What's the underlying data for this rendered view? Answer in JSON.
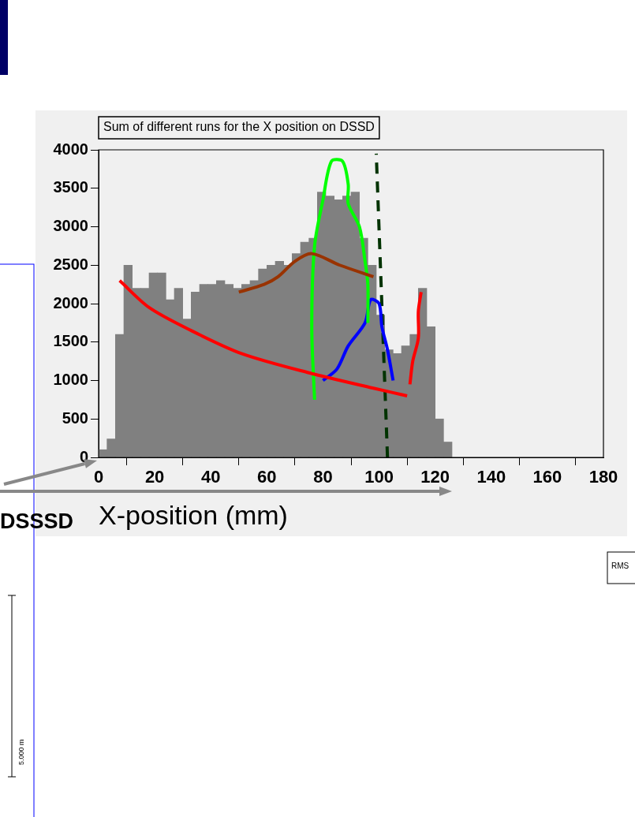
{
  "chart_data": {
    "type": "histogram",
    "title": "Sum of different runs for the X position on DSSD",
    "xlabel": "X-position (mm)",
    "bins": [
      0,
      3,
      6,
      9,
      12,
      15,
      18,
      21,
      24,
      27,
      30,
      33,
      36,
      39,
      42,
      45,
      48,
      51,
      54,
      57,
      60,
      63,
      66,
      69,
      72,
      75,
      78,
      81,
      84,
      87,
      90,
      93,
      96,
      99,
      102,
      105,
      108,
      111,
      114,
      117,
      120,
      123,
      126
    ],
    "values": [
      100,
      240,
      1600,
      2500,
      2200,
      2200,
      2400,
      2400,
      2050,
      2200,
      1800,
      2150,
      2250,
      2250,
      2300,
      2250,
      2200,
      2250,
      2300,
      2450,
      2500,
      2550,
      2500,
      2650,
      2800,
      2850,
      3450,
      3400,
      3350,
      3400,
      3450,
      2850,
      2500,
      1850,
      1400,
      1350,
      1450,
      1600,
      2200,
      1700,
      500,
      200
    ],
    "color": "#808080",
    "xlim": [
      0,
      180
    ],
    "ylim": [
      0,
      4000
    ],
    "xticks": [
      0,
      20,
      40,
      60,
      80,
      100,
      120,
      140,
      160,
      180
    ],
    "yticks": [
      0,
      500,
      1000,
      1500,
      2000,
      2500,
      3000,
      3500,
      4000
    ],
    "grid": false,
    "series": [
      {
        "type": "line",
        "color": "#ff0000",
        "x": [
          7.5,
          18,
          33,
          51,
          75,
          98,
          110
        ],
        "values": [
          2300,
          1950,
          1650,
          1350,
          1100,
          900,
          800
        ]
      },
      {
        "type": "line",
        "color": "#ff0000",
        "x": [
          111,
          112,
          114,
          114,
          115
        ],
        "values": [
          950,
          1250,
          1550,
          1900,
          2150
        ]
      },
      {
        "type": "line",
        "color": "#993300",
        "x": [
          50,
          59,
          64,
          70,
          76,
          86,
          98
        ],
        "values": [
          2150,
          2250,
          2350,
          2550,
          2650,
          2500,
          2350
        ]
      },
      {
        "type": "line",
        "color": "#00ff00",
        "x": [
          77,
          76,
          77,
          80,
          83,
          87,
          89,
          89,
          93,
          95,
          96,
          96
        ],
        "values": [
          750,
          1700,
          2750,
          3350,
          3850,
          3850,
          3550,
          3300,
          3000,
          2550,
          2250,
          1750
        ]
      },
      {
        "type": "line",
        "color": "#0000ff",
        "x": [
          80,
          85,
          89,
          95,
          97,
          100,
          101,
          103,
          105
        ],
        "values": [
          1000,
          1150,
          1450,
          1750,
          2050,
          2000,
          1700,
          1400,
          1000
        ]
      },
      {
        "type": "line",
        "color": "#003300",
        "line_style": "dashed",
        "x": [
          103,
          99
        ],
        "values": [
          0,
          3950
        ]
      }
    ],
    "annotations": [
      "DSSSD",
      "5.000 m",
      "RMS"
    ]
  }
}
